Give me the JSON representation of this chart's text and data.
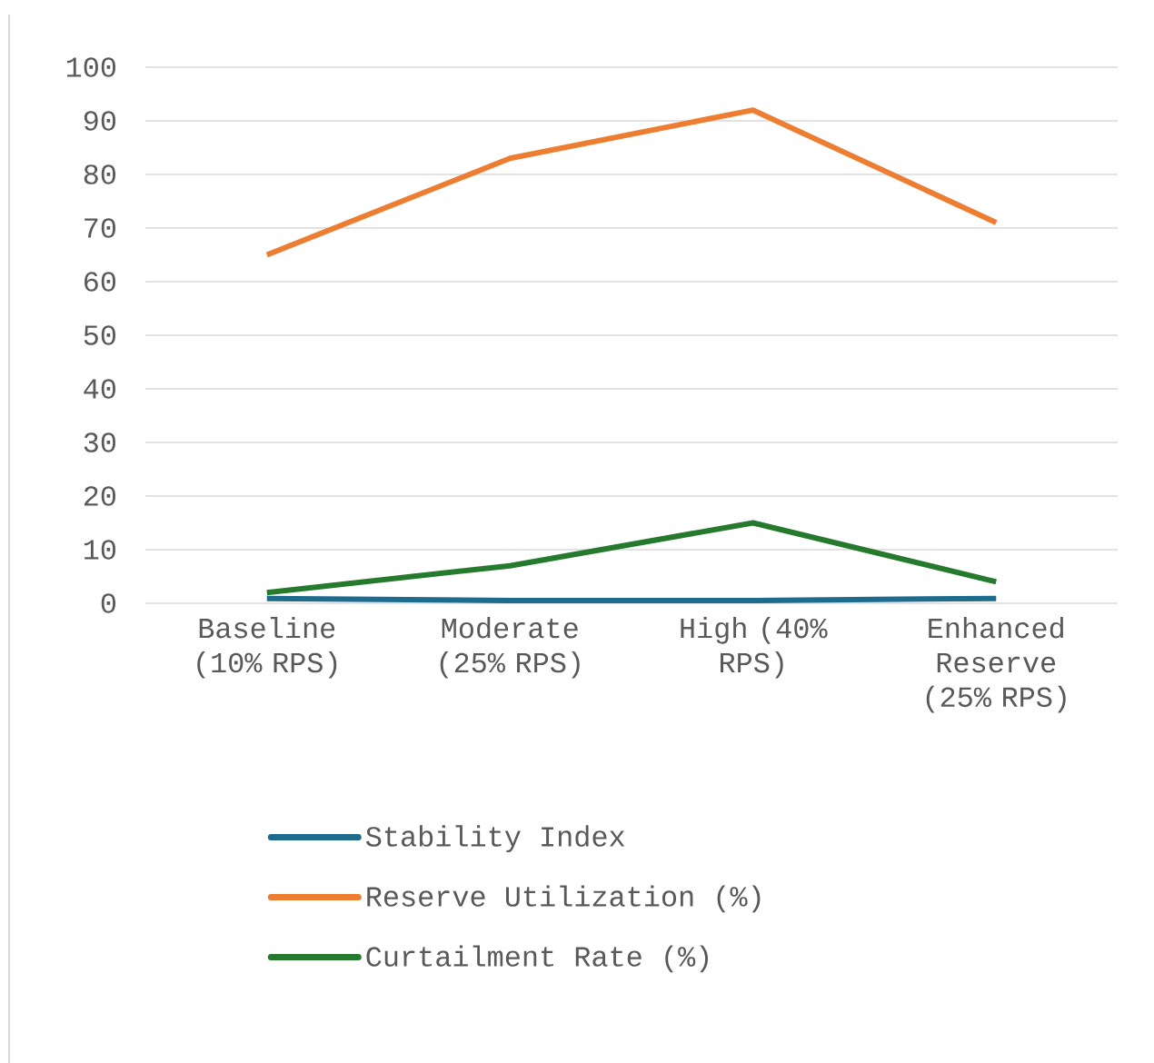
{
  "chart_data": {
    "type": "line",
    "categories": [
      "Baseline (10% RPS)",
      "Moderate (25% RPS)",
      "High (40% RPS)",
      "Enhanced Reserve (25% RPS)"
    ],
    "series": [
      {
        "name": "Stability Index",
        "color": "#1f6b8e",
        "values": [
          0.9,
          0.5,
          0.5,
          0.9
        ]
      },
      {
        "name": "Reserve Utilization (%)",
        "color": "#ed7d31",
        "values": [
          65,
          83,
          92,
          71
        ]
      },
      {
        "name": "Curtailment Rate (%)",
        "color": "#267a2e",
        "values": [
          2,
          7,
          15,
          4
        ]
      }
    ],
    "ylim": [
      0,
      100
    ],
    "yticks": [
      0,
      10,
      20,
      30,
      40,
      50,
      60,
      70,
      80,
      90,
      100
    ],
    "grid": "y",
    "legend": "bottom",
    "marker": "none",
    "line_style": "solid"
  }
}
